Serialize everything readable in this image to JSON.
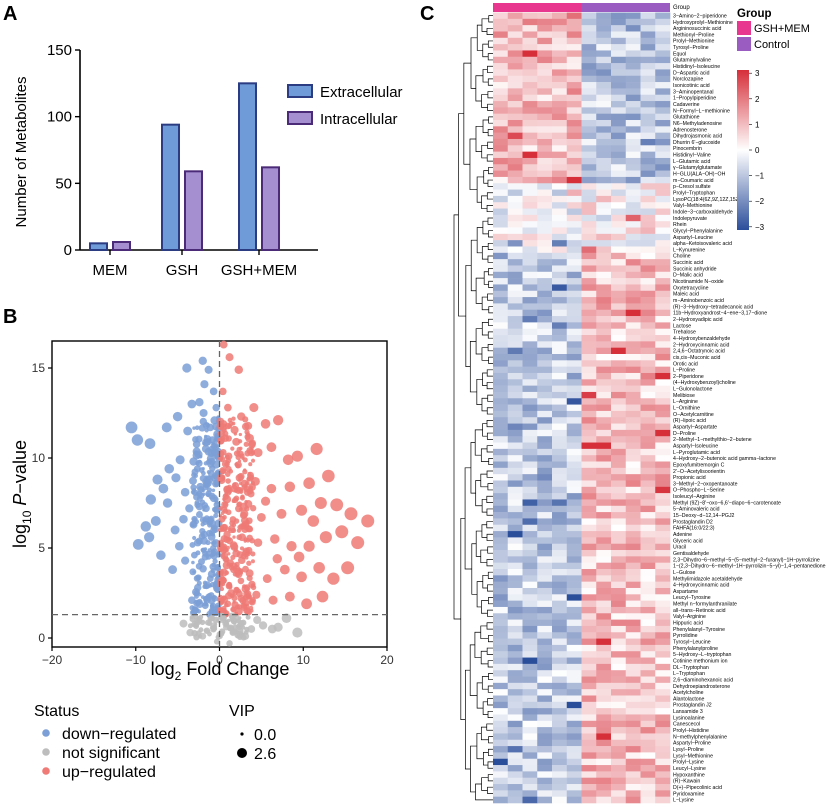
{
  "panels": {
    "a": "A",
    "b": "B",
    "c": "C"
  },
  "chart_data": [
    {
      "id": "A",
      "type": "bar",
      "title": "",
      "xlabel": "",
      "ylabel": "Number of Metabolites",
      "ylim": [
        0,
        150
      ],
      "yticks": [
        "0",
        "50",
        "100",
        "150"
      ],
      "categories": [
        "MEM",
        "GSH",
        "GSH+MEM"
      ],
      "series": [
        {
          "name": "Extracellular",
          "color": "#6f9bd8",
          "edge": "#2b3c82",
          "values": [
            5,
            94,
            125
          ]
        },
        {
          "name": "Intracellular",
          "color": "#a68fd1",
          "edge": "#4b2a78",
          "values": [
            6,
            59,
            62
          ]
        }
      ],
      "legend": "top-right"
    },
    {
      "id": "B",
      "type": "scatter",
      "title": "",
      "xlabel": "log2 Fold Change",
      "ylabel": "log10 P-value",
      "xlim": [
        -20,
        20
      ],
      "ylim": [
        -0.5,
        16.5
      ],
      "xticks": [
        "-20",
        "-10",
        "0",
        "10",
        "20"
      ],
      "yticks": [
        "0",
        "5",
        "10",
        "15"
      ],
      "thresholds": {
        "x": 0,
        "y": 1.3
      },
      "status": {
        "title": "Status",
        "items": [
          {
            "label": "down−regulated",
            "color": "#7b9fd6"
          },
          {
            "label": "not significant",
            "color": "#bdbdbd"
          },
          {
            "label": "up−regulated",
            "color": "#ef7a76"
          }
        ]
      },
      "vip": {
        "title": "VIP",
        "items": [
          {
            "label": "0.0"
          },
          {
            "label": "2.6"
          }
        ]
      },
      "points_down": [
        [
          -10.5,
          11.7
        ],
        [
          -9.8,
          11
        ],
        [
          -8.3,
          10.8
        ],
        [
          -6.3,
          11.7
        ],
        [
          -5,
          12.3
        ],
        [
          -6,
          9.4
        ],
        [
          -3.9,
          15
        ],
        [
          -3.3,
          13
        ],
        [
          -3.8,
          11.5
        ],
        [
          -2,
          15.4
        ],
        [
          -1.3,
          14.9
        ],
        [
          -1.8,
          14.1
        ],
        [
          -2.4,
          13.1
        ],
        [
          -1.9,
          12.5
        ],
        [
          -2.5,
          10.2
        ],
        [
          -1.4,
          10.9
        ],
        [
          -3.1,
          9.8
        ],
        [
          -4.7,
          9.9
        ],
        [
          -5.2,
          8.9
        ],
        [
          -7.4,
          8.8
        ],
        [
          -6.7,
          8.3
        ],
        [
          -8.2,
          7.7
        ],
        [
          -4.1,
          8.1
        ],
        [
          -6.2,
          7.5
        ],
        [
          -7.6,
          6.5
        ],
        [
          -8.8,
          6.2
        ],
        [
          -9.7,
          5.2
        ],
        [
          -8.4,
          5.6
        ],
        [
          -7,
          4.6
        ],
        [
          -4.3,
          6.6
        ],
        [
          -5.3,
          6
        ],
        [
          -3.1,
          6.3
        ],
        [
          -2.3,
          8.4
        ],
        [
          -1.2,
          8.8
        ],
        [
          -1.6,
          7.2
        ],
        [
          -2.6,
          5.3
        ],
        [
          -4.1,
          4.3
        ],
        [
          -1.7,
          4.5
        ],
        [
          -0.7,
          6
        ],
        [
          -1.1,
          3.3
        ],
        [
          -2.6,
          2.8
        ],
        [
          -3.3,
          2.1
        ],
        [
          -0.6,
          2.2
        ],
        [
          -1.7,
          1.8
        ],
        [
          -0.8,
          1.5
        ],
        [
          -0.4,
          12.8
        ],
        [
          -0.5,
          10.3
        ],
        [
          -0.3,
          7.4
        ],
        [
          -0.6,
          4.8
        ],
        [
          -0.2,
          3.9
        ],
        [
          -0.9,
          9.8
        ],
        [
          -0.7,
          13.7
        ],
        [
          -1.1,
          11.7
        ],
        [
          -5.6,
          3.8
        ],
        [
          -4.8,
          5.1
        ],
        [
          -3.6,
          7.2
        ]
      ],
      "points_ns": [
        [
          -1.5,
          0.4
        ],
        [
          -0.7,
          0.7
        ],
        [
          0,
          0.2
        ],
        [
          0.8,
          0.6
        ],
        [
          1.6,
          0.3
        ],
        [
          2.6,
          0.8
        ],
        [
          -2.6,
          0.9
        ],
        [
          3.8,
          0.5
        ],
        [
          -3.5,
          0.3
        ],
        [
          5.2,
          0.7
        ],
        [
          -0.3,
          -0.2
        ],
        [
          1.2,
          -0.3
        ],
        [
          -4.3,
          0.8
        ],
        [
          4.5,
          1
        ],
        [
          8,
          1.1
        ],
        [
          6.3,
          0.5
        ],
        [
          -0.9,
          1.1
        ],
        [
          0.4,
          1
        ],
        [
          2,
          1.1
        ],
        [
          -2,
          0.1
        ],
        [
          3.1,
          0.1
        ],
        [
          7,
          0.6
        ],
        [
          9.3,
          0.3
        ]
      ],
      "points_up": [
        [
          0.5,
          16.3
        ],
        [
          1.2,
          15.6
        ],
        [
          2.3,
          14.9
        ],
        [
          4.1,
          12.8
        ],
        [
          2.6,
          12.3
        ],
        [
          1,
          12.8
        ],
        [
          5.5,
          11.9
        ],
        [
          7,
          12.1
        ],
        [
          3.6,
          11.1
        ],
        [
          2,
          10.9
        ],
        [
          1.1,
          10.1
        ],
        [
          4.6,
          10.3
        ],
        [
          6.2,
          10.6
        ],
        [
          8.2,
          9.9
        ],
        [
          9.3,
          10.1
        ],
        [
          11.6,
          10.5
        ],
        [
          13,
          9
        ],
        [
          10.7,
          8.6
        ],
        [
          8.4,
          8.4
        ],
        [
          6.2,
          8.3
        ],
        [
          4.3,
          8.7
        ],
        [
          2.4,
          8.9
        ],
        [
          1,
          8.1
        ],
        [
          2.9,
          7.3
        ],
        [
          5,
          6.7
        ],
        [
          7.4,
          6.9
        ],
        [
          9.8,
          7.1
        ],
        [
          12.1,
          7.5
        ],
        [
          14,
          7.4
        ],
        [
          15.7,
          6.9
        ],
        [
          17.7,
          6.5
        ],
        [
          16.5,
          5.3
        ],
        [
          14.6,
          5.9
        ],
        [
          12.7,
          5.6
        ],
        [
          10.7,
          5.1
        ],
        [
          8.6,
          5.1
        ],
        [
          6.6,
          5.5
        ],
        [
          4.6,
          5.3
        ],
        [
          2.7,
          5.6
        ],
        [
          1.2,
          5.4
        ],
        [
          1.7,
          4
        ],
        [
          3.6,
          3.6
        ],
        [
          5.7,
          3.3
        ],
        [
          7.8,
          3.8
        ],
        [
          9.8,
          3.4
        ],
        [
          11.9,
          3.9
        ],
        [
          13.6,
          3.3
        ],
        [
          15.3,
          3.9
        ],
        [
          12.3,
          2.3
        ],
        [
          10.4,
          1.9
        ],
        [
          8.4,
          2.3
        ],
        [
          6.4,
          2.1
        ],
        [
          4.4,
          2.4
        ],
        [
          2.6,
          2.2
        ],
        [
          1,
          1.9
        ],
        [
          3.1,
          6.3
        ],
        [
          5.5,
          7.6
        ],
        [
          9.5,
          4.5
        ],
        [
          11.2,
          6.5
        ],
        [
          6.9,
          4.4
        ],
        [
          0.4,
          13.7
        ],
        [
          0.7,
          11.1
        ],
        [
          0.4,
          9.3
        ],
        [
          0.3,
          6.6
        ],
        [
          0.5,
          3.2
        ]
      ]
    },
    {
      "id": "C",
      "type": "heatmap",
      "title": "",
      "group_label": "Group",
      "legend_title": "Group",
      "groups": [
        {
          "name": "GSH+MEM",
          "color": "#e8378f",
          "n": 6
        },
        {
          "name": "Control",
          "color": "#9a5cc0",
          "n": 6
        }
      ],
      "color_scale": {
        "min": -3,
        "max": 3,
        "low": "#2b4e9b",
        "mid": "#ffffff",
        "high": "#d62f3a",
        "ticks": [
          "3",
          "2",
          "1",
          "0",
          "−1",
          "−2",
          "−3"
        ]
      },
      "rows": [
        "3−Amino−2−piperidone",
        "Hydroxyprolyl−Methionine",
        "Argininosuccinic acid",
        "Methionyl−Proline",
        "Prolyl−Methionine",
        "Tyrosyl−Proline",
        "Equol",
        "Glutaminylvaline",
        "Histidinyl−Isoleucine",
        "D−Aspartic acid",
        "Norclozapine",
        "Isonicotinic acid",
        "3−Aminopentanal",
        "1−Propylpiperidine",
        "Cadaverine",
        "N−Formyl−L−methionine",
        "Glutathione",
        "N6−Methyladenosine",
        "Adrenosterone",
        "Dihydrojasmonic acid",
        "Dhurrin 6'−glucoside",
        "Pinocembrin",
        "Histidinyl−Valine",
        "L−Glutamic acid",
        "γ−Glutamylglutamate",
        "H−GLU(ALA−OH)−OH",
        "m−Coumaric acid",
        "p−Cresol sulfate",
        "Prolyl−Tryptophan",
        "LysoPC(18:4(6Z,9Z,12Z,15Z))",
        "Valyl−Methionine",
        "Indole−3−carboxaldehyde",
        "Indolepyruvate",
        "Rhein",
        "Glycyl−Phenylalanine",
        "Aspartyl−Leucine",
        "alpha−Ketoisovaleric acid",
        "L−Kynurenine",
        "Choline",
        "Succinic acid",
        "Succinic anhydride",
        "D−Malic acid",
        "Nicotinamide N−oxide",
        "Oxytetracycline",
        "Maleic acid",
        "m−Aminobenzoic acid",
        "(R)−3−Hydroxy−tetradecanoic acid",
        "11b−Hydroxyandrost−4−ene−3,17−dione",
        "2−Hydroxyadipic acid",
        "Lactose",
        "Trehalose",
        "4−Hydroxybenzaldehyde",
        "2−Hydroxycinnamic acid",
        "2,4,6−Octatrynoic acid",
        "cis,cis−Muconic acid",
        "Orotic acid",
        "L−Proline",
        "2−Piperidone",
        "(4−Hydroxybenzoyl)choline",
        "L−Gulonolactone",
        "Melibiose",
        "L−Arginine",
        "L−Ornithine",
        "O−Acetylcarnitine",
        "(R)−lipoic acid",
        "Aspartyl−Aspartate",
        "D−Proline",
        "2−Methyl−1−methylthio−2−butene",
        "Aspartyl−Isoleucine",
        "L−Pyroglutamic acid",
        "4−Hydroxy−2−butenoic acid gamma−lactone",
        "Epoxyfumitremorgin C",
        "2'−O−Acetylisoorientin",
        "Propionic acid",
        "3−Methyl−2−oxopentanoate",
        "O−Phospho−L−Serine",
        "Isoleucyl−Arginine",
        "Methyl (9Z)−8'−oxo−6,6'−diapo−6−carotenoate",
        "5−Aminovaleric acid",
        "15−Deoxy−d−12,14−PGJ2",
        "Prostaglandin D2",
        "FAHFA(16:0/22:3)",
        "Adenine",
        "Glyceric acid",
        "Uracil",
        "Gentisaldehyde",
        "2,3−Dihydro−6−methyl−5−(5−methyl−2−furanyl)−1H−pyrrolizine",
        "1−(2,3−Dihydro−6−methyl−1H−pyrrolizin−5−yl)−1,4−pentanedione",
        "L−Gulose",
        "Methylimidazole acetaldehyde",
        "4−Hydroxycinnamic acid",
        "Aspartame",
        "Leucyl−Tyrosine",
        "Methyl n−formylanthranilate",
        "all−trans−Retinoic acid",
        "Valyl−Arginine",
        "Hippuric acid",
        "Phenylalanyl−Tyrosine",
        "Pyrrolidine",
        "Tyrosyl−Leucine",
        "Phenylalanylproline",
        "5−Hydroxy−L−tryptophan",
        "Cotinine methonium ion",
        "DL−Tryptophan",
        "L−Tryptophan",
        "2,6−diaminohexanoic acid",
        "Dehydroepiandrosterone",
        "Acetylcholine",
        "Alantolactone",
        "Prostaglandin J2",
        "Lansamide 3",
        "Lysinoalanine",
        "Canescecol",
        "Prolyl−Histidine",
        "N−methylphenylalanine",
        "Aspartyl−Proline",
        "Lysyl−Proline",
        "Lysyl−Methionine",
        "Prolyl−Lysine",
        "Leucyl−Lysine",
        "Hypoxanthine",
        "(R)−Kawain",
        "D(+)−Pipecolinic acid",
        "Pyridoxamine",
        "L−Lysine"
      ]
    }
  ]
}
